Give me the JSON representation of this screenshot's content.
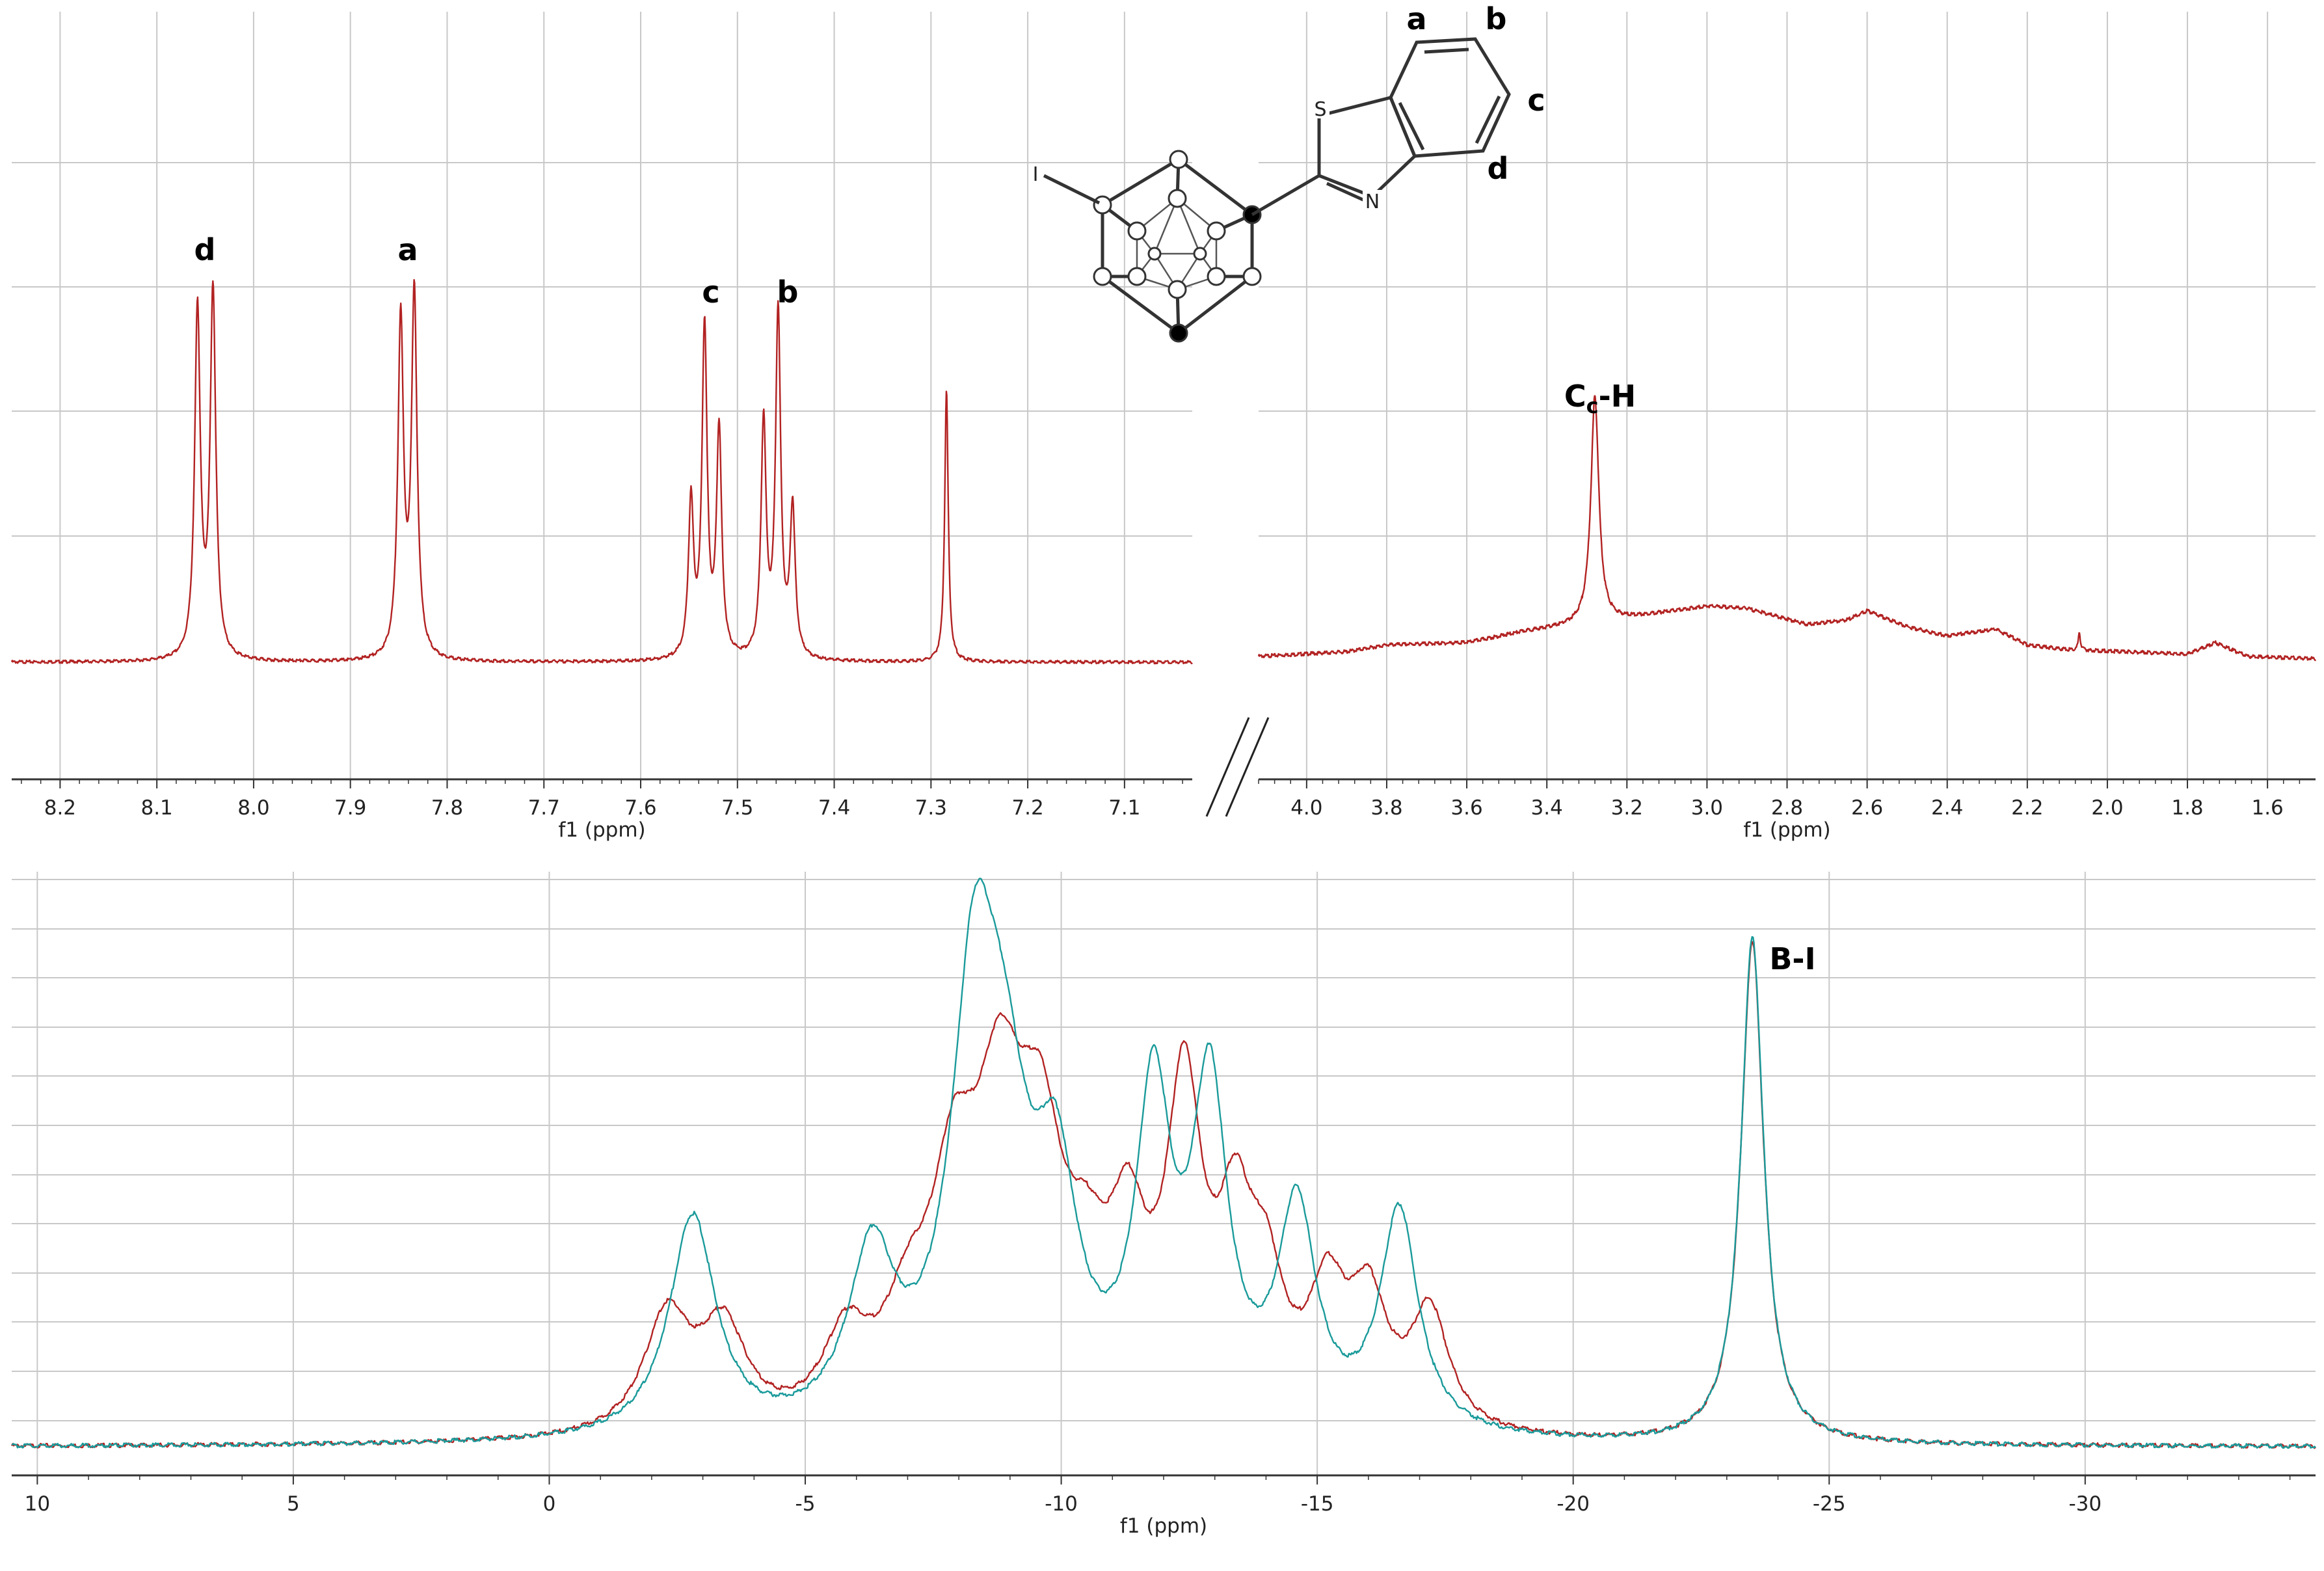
{
  "colors": {
    "red": "#b22222",
    "teal": "#1a9a9a",
    "grid": "#c8c8c8",
    "axis": "#333333"
  },
  "chart_data": [
    {
      "id": "h1-aromatic",
      "type": "line",
      "xlabel": "f1 (ppm)",
      "x_range": [
        8.25,
        7.03
      ],
      "x_ticks": [
        "8.2",
        "8.1",
        "8.0",
        "7.9",
        "7.8",
        "7.7",
        "7.6",
        "7.5",
        "7.4",
        "7.3",
        "7.2",
        "7.1"
      ],
      "x_tick_values": [
        8.2,
        8.1,
        8.0,
        7.9,
        7.8,
        7.7,
        7.6,
        7.5,
        7.4,
        7.3,
        7.2,
        7.1
      ],
      "ylim": [
        0,
        1
      ],
      "grid": true,
      "series": [
        {
          "color": "#b22222",
          "peaks": [
            {
              "x": 8.058,
              "h": 0.92,
              "w": 0.0035
            },
            {
              "x": 8.042,
              "h": 0.97,
              "w": 0.0035
            },
            {
              "x": 7.848,
              "h": 0.89,
              "w": 0.0035
            },
            {
              "x": 7.834,
              "h": 0.96,
              "w": 0.0035
            },
            {
              "x": 7.548,
              "h": 0.41,
              "w": 0.0032
            },
            {
              "x": 7.534,
              "h": 0.87,
              "w": 0.0032
            },
            {
              "x": 7.519,
              "h": 0.6,
              "w": 0.0032
            },
            {
              "x": 7.473,
              "h": 0.62,
              "w": 0.0032
            },
            {
              "x": 7.458,
              "h": 0.91,
              "w": 0.0032
            },
            {
              "x": 7.443,
              "h": 0.39,
              "w": 0.0032
            },
            {
              "x": 7.284,
              "h": 0.72,
              "w": 0.0022
            }
          ]
        }
      ],
      "annotations": [
        {
          "label": "d",
          "x": 8.05
        },
        {
          "label": "a",
          "x": 7.84
        },
        {
          "label": "c",
          "x": 7.535
        },
        {
          "label": "b",
          "x": 7.458
        }
      ]
    },
    {
      "id": "h1-aliphatic",
      "type": "line",
      "xlabel": "f1 (ppm)",
      "x_range": [
        4.12,
        1.48
      ],
      "x_ticks": [
        "4.0",
        "3.8",
        "3.6",
        "3.4",
        "3.2",
        "3.0",
        "2.8",
        "2.6",
        "2.4",
        "2.2",
        "2.0",
        "1.8",
        "1.6"
      ],
      "x_tick_values": [
        4.0,
        3.8,
        3.6,
        3.4,
        3.2,
        3.0,
        2.8,
        2.6,
        2.4,
        2.2,
        2.0,
        1.8,
        1.6
      ],
      "ylim": [
        0,
        1
      ],
      "grid": true,
      "series": [
        {
          "color": "#b22222",
          "baseline": [
            [
              4.12,
              0.01
            ],
            [
              3.9,
              0.02
            ],
            [
              3.8,
              0.035
            ],
            [
              3.6,
              0.04
            ],
            [
              3.45,
              0.065
            ],
            [
              3.35,
              0.075
            ],
            [
              3.25,
              0.085
            ],
            [
              3.15,
              0.1
            ],
            [
              3.0,
              0.12
            ],
            [
              2.9,
              0.115
            ],
            [
              2.75,
              0.08
            ],
            [
              2.65,
              0.09
            ],
            [
              2.6,
              0.11
            ],
            [
              2.5,
              0.075
            ],
            [
              2.4,
              0.055
            ],
            [
              2.28,
              0.07
            ],
            [
              2.2,
              0.035
            ],
            [
              2.1,
              0.025
            ],
            [
              1.95,
              0.02
            ],
            [
              1.8,
              0.015
            ],
            [
              1.73,
              0.04
            ],
            [
              1.65,
              0.01
            ],
            [
              1.48,
              0.005
            ]
          ],
          "peaks": [
            {
              "x": 3.28,
              "h": 0.5,
              "w": 0.012
            },
            {
              "x": 2.07,
              "h": 0.04,
              "w": 0.003
            }
          ]
        }
      ],
      "annotations": [
        {
          "label": "Cc-H",
          "x": 3.28
        }
      ]
    },
    {
      "id": "b11",
      "type": "line",
      "xlabel": "f1 (ppm)",
      "x_range": [
        10.5,
        -34.5
      ],
      "x_ticks": [
        "10",
        "5",
        "0",
        "-5",
        "-10",
        "-15",
        "-20",
        "-25",
        "-30"
      ],
      "x_tick_values": [
        10,
        5,
        0,
        -5,
        -10,
        -15,
        -20,
        -25,
        -30
      ],
      "ylim": [
        0,
        1
      ],
      "grid": true,
      "series": [
        {
          "color": "#b22222",
          "peaks": [
            {
              "x": -2.3,
              "h": 0.22,
              "w": 0.55
            },
            {
              "x": -3.4,
              "h": 0.19,
              "w": 0.55
            },
            {
              "x": -5.8,
              "h": 0.16,
              "w": 0.55
            },
            {
              "x": -7.0,
              "h": 0.16,
              "w": 0.55
            },
            {
              "x": -7.9,
              "h": 0.38,
              "w": 0.55
            },
            {
              "x": -8.8,
              "h": 0.52,
              "w": 0.6
            },
            {
              "x": -9.6,
              "h": 0.42,
              "w": 0.55
            },
            {
              "x": -10.5,
              "h": 0.19,
              "w": 0.5
            },
            {
              "x": -11.3,
              "h": 0.3,
              "w": 0.45
            },
            {
              "x": -12.4,
              "h": 0.6,
              "w": 0.42
            },
            {
              "x": -13.4,
              "h": 0.33,
              "w": 0.42
            },
            {
              "x": -14.0,
              "h": 0.22,
              "w": 0.42
            },
            {
              "x": -15.2,
              "h": 0.23,
              "w": 0.45
            },
            {
              "x": -16.0,
              "h": 0.22,
              "w": 0.45
            },
            {
              "x": -17.2,
              "h": 0.22,
              "w": 0.45
            },
            {
              "x": -23.5,
              "h": 0.95,
              "w": 0.27
            }
          ]
        },
        {
          "color": "#1a9a9a",
          "peaks": [
            {
              "x": -2.8,
              "h": 0.42,
              "w": 0.55
            },
            {
              "x": -6.3,
              "h": 0.32,
              "w": 0.55
            },
            {
              "x": -8.3,
              "h": 0.76,
              "w": 0.55
            },
            {
              "x": -8.9,
              "h": 0.44,
              "w": 0.6
            },
            {
              "x": -9.9,
              "h": 0.4,
              "w": 0.5
            },
            {
              "x": -11.8,
              "h": 0.6,
              "w": 0.42
            },
            {
              "x": -12.9,
              "h": 0.62,
              "w": 0.42
            },
            {
              "x": -14.6,
              "h": 0.41,
              "w": 0.45
            },
            {
              "x": -16.6,
              "h": 0.42,
              "w": 0.45
            },
            {
              "x": -23.5,
              "h": 0.96,
              "w": 0.27
            }
          ]
        }
      ],
      "annotations": [
        {
          "label": "B-I",
          "x": -23.5
        }
      ]
    }
  ],
  "structure": {
    "iodine": "I",
    "sulfur": "S",
    "nitrogen": "N",
    "ring_labels": [
      "a",
      "b",
      "c",
      "d"
    ]
  }
}
